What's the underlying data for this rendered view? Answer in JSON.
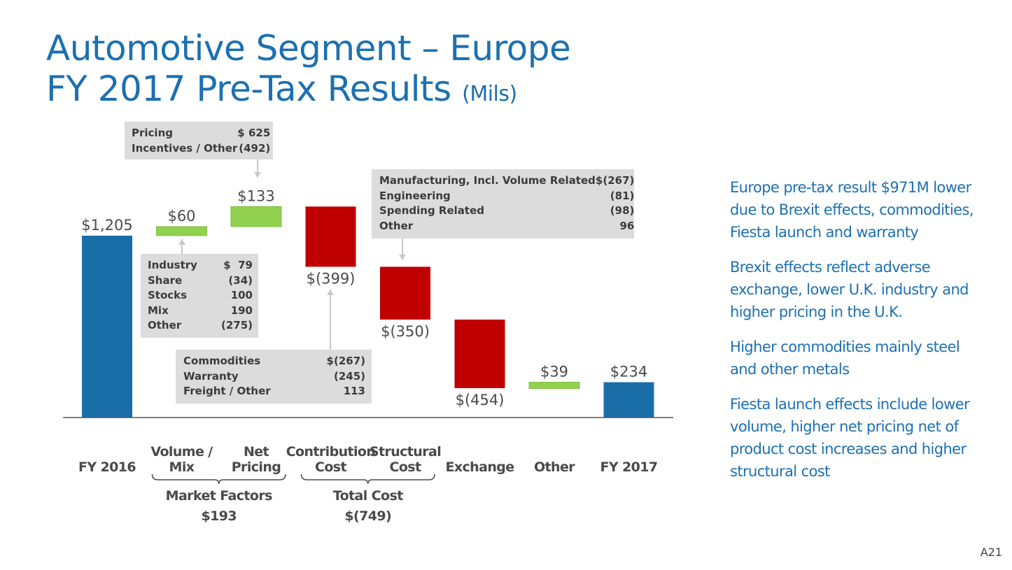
{
  "slide": {
    "title_line1": "Automotive Segment – Europe",
    "title_line2": "FY 2017 Pre-Tax Results",
    "title_units": "(Mils)",
    "page_number": "A21"
  },
  "chart_data": {
    "type": "bar",
    "subtype": "waterfall",
    "categories": [
      "FY 2016",
      "Volume / Mix",
      "Net Pricing",
      "Contribution Cost",
      "Structural Cost",
      "Exchange",
      "Other",
      "FY 2017"
    ],
    "values": [
      1205,
      60,
      133,
      -399,
      -350,
      -454,
      39,
      234
    ],
    "value_labels": [
      "$1,205",
      "$60",
      "$133",
      "$(399)",
      "$(350)",
      "$(454)",
      "$39",
      "$234"
    ],
    "kinds": [
      "total",
      "delta",
      "delta",
      "delta",
      "delta",
      "delta",
      "delta",
      "total"
    ],
    "colors": {
      "total": "#1a6ea8",
      "increase": "#92d050",
      "decrease": "#c00000"
    },
    "groups": [
      {
        "label": "Market Factors",
        "value": "$193",
        "from": 1,
        "to": 2
      },
      {
        "label": "Total Cost",
        "value": "$(749)",
        "from": 3,
        "to": 4
      }
    ],
    "ylim": [
      0,
      1320
    ],
    "grid": false
  },
  "callouts": {
    "pricing": {
      "rows": [
        {
          "label": "Pricing",
          "value": "$ 625"
        },
        {
          "label": "Incentives / Other",
          "value": "(492)"
        }
      ]
    },
    "market": {
      "rows": [
        {
          "label": "Industry",
          "value": "$  79"
        },
        {
          "label": "Share",
          "value": "(34)"
        },
        {
          "label": "Stocks",
          "value": "100"
        },
        {
          "label": "Mix",
          "value": "190"
        },
        {
          "label": "Other",
          "value": "(275)"
        }
      ]
    },
    "contribution": {
      "rows": [
        {
          "label": "Commodities",
          "value": "$(267)"
        },
        {
          "label": "Warranty",
          "value": "(245)"
        },
        {
          "label": "Freight / Other",
          "value": "113"
        }
      ]
    },
    "structural": {
      "rows": [
        {
          "label": "Manufacturing, Incl. Volume Related",
          "value": "$(267)"
        },
        {
          "label": "Engineering",
          "value": "(81)"
        },
        {
          "label": "Spending Related",
          "value": "(98)"
        },
        {
          "label": "Other",
          "value": "96"
        }
      ]
    }
  },
  "bullets": [
    "Europe pre-tax result $971M lower due to Brexit effects, commodities, Fiesta launch and warranty",
    "Brexit effects reflect adverse exchange, lower U.K. industry and higher pricing in the U.K.",
    "Higher commodities mainly steel and other metals",
    "Fiesta launch effects include lower volume, higher net pricing net of product cost increases and higher structural cost"
  ]
}
